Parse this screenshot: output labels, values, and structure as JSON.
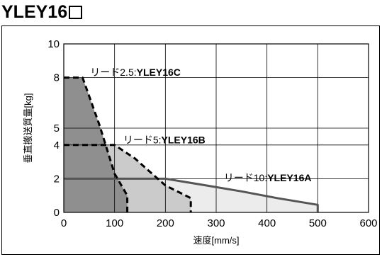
{
  "title": {
    "text": "YLEY16",
    "box_glyph": "□"
  },
  "chart_data": {
    "type": "area",
    "title": "YLEY16□",
    "xlabel": "速度[mm/s]",
    "ylabel": "垂直搬送質量[kg]",
    "xlim": [
      0,
      600
    ],
    "ylim": [
      0,
      10
    ],
    "xticks": [
      0,
      100,
      200,
      300,
      400,
      500,
      600
    ],
    "yticks": [
      0,
      2,
      4,
      5,
      8,
      10
    ],
    "grid": true,
    "series": [
      {
        "label_prefix": "リード10:",
        "label_model": "YLEY16A",
        "line_style": "solid",
        "line_color": "#555555",
        "fill_color": "#ececec",
        "points": [
          [
            0,
            2
          ],
          [
            200,
            2
          ],
          [
            280,
            1.6
          ],
          [
            350,
            1.25
          ],
          [
            420,
            0.85
          ],
          [
            500,
            0.45
          ],
          [
            500,
            0
          ]
        ]
      },
      {
        "label_prefix": "リード5:",
        "label_model": "YLEY16B",
        "line_style": "dashed",
        "line_color": "#000000",
        "fill_color": "#cbcbcb",
        "points": [
          [
            0,
            4
          ],
          [
            100,
            4
          ],
          [
            140,
            3.2
          ],
          [
            200,
            1.6
          ],
          [
            250,
            0.85
          ],
          [
            250,
            0
          ]
        ]
      },
      {
        "label_prefix": "リード2.5:",
        "label_model": "YLEY16C",
        "line_style": "dashed",
        "line_color": "#000000",
        "fill_color": "#8f8f8f",
        "points": [
          [
            0,
            8
          ],
          [
            37,
            8
          ],
          [
            70,
            5.2
          ],
          [
            100,
            2.3
          ],
          [
            125,
            1
          ],
          [
            125,
            0
          ]
        ]
      }
    ],
    "annotations": [
      {
        "prefix": "リード2.5:",
        "model": "YLEY16C",
        "x": 52,
        "y": 8.1
      },
      {
        "prefix": "リード5:",
        "model": "YLEY16B",
        "x": 117,
        "y": 4.1
      },
      {
        "prefix": "リード10:",
        "model": "YLEY16A",
        "x": 315,
        "y": 1.85
      }
    ]
  }
}
